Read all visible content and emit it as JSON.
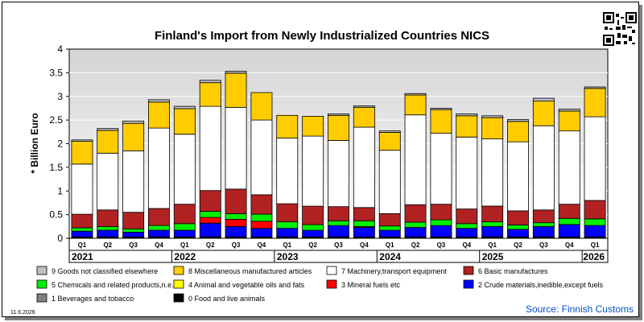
{
  "chart_data": {
    "type": "bar",
    "stacked": true,
    "title": "Finland's Import from Newly Industrialized Countries NICS",
    "ylabel": "* Billion Euro",
    "ylim": [
      0,
      4
    ],
    "yticks": [
      "0",
      "0.5",
      "1",
      "1.5",
      "2",
      "2.5",
      "3",
      "3.5",
      "4"
    ],
    "grid": true,
    "categories": [
      "Q1",
      "Q2",
      "Q3",
      "Q4",
      "Q1",
      "Q2",
      "Q3",
      "Q4",
      "Q1",
      "Q2",
      "Q3",
      "Q4",
      "Q1",
      "Q2",
      "Q3",
      "Q4",
      "Q1",
      "Q2",
      "Q3",
      "Q4",
      "Q1"
    ],
    "years": [
      {
        "label": "2021",
        "start": 0,
        "count": 4
      },
      {
        "label": "2022",
        "start": 4,
        "count": 4
      },
      {
        "label": "2023",
        "start": 8,
        "count": 4
      },
      {
        "label": "2024",
        "start": 12,
        "count": 4
      },
      {
        "label": "2025",
        "start": 16,
        "count": 4
      },
      {
        "label": "2026",
        "start": 20,
        "count": 1
      }
    ],
    "series": [
      {
        "name": "0 Food and live animals",
        "color": "#000000",
        "values": [
          0.02,
          0.02,
          0.02,
          0.02,
          0.02,
          0.02,
          0.02,
          0.02,
          0.02,
          0.02,
          0.02,
          0.02,
          0.02,
          0.02,
          0.02,
          0.02,
          0.02,
          0.02,
          0.02,
          0.02,
          0.02
        ]
      },
      {
        "name": "1 Beverages and tobacco",
        "color": "#808080",
        "values": [
          0.01,
          0.01,
          0.01,
          0.01,
          0.01,
          0.01,
          0.01,
          0.01,
          0.01,
          0.01,
          0.01,
          0.01,
          0.01,
          0.01,
          0.01,
          0.01,
          0.01,
          0.01,
          0.01,
          0.01,
          0.01
        ]
      },
      {
        "name": "2 Crude materials,inedible,except fuels",
        "color": "#0000ff",
        "values": [
          0.12,
          0.14,
          0.1,
          0.14,
          0.14,
          0.29,
          0.22,
          0.18,
          0.18,
          0.14,
          0.24,
          0.2,
          0.14,
          0.2,
          0.24,
          0.18,
          0.22,
          0.16,
          0.22,
          0.26,
          0.24
        ]
      },
      {
        "name": "3 Mineral fuels etc",
        "color": "#ff0000",
        "values": [
          0.0,
          0.0,
          0.0,
          0.0,
          0.0,
          0.12,
          0.15,
          0.15,
          0.0,
          0.0,
          0.0,
          0.02,
          0.0,
          0.0,
          0.0,
          0.0,
          0.0,
          0.0,
          0.0,
          0.0,
          0.0
        ]
      },
      {
        "name": "4 Animal and vegetable oils and fats",
        "color": "#ffff00",
        "values": [
          0.0,
          0.0,
          0.0,
          0.0,
          0.0,
          0.0,
          0.0,
          0.0,
          0.0,
          0.0,
          0.0,
          0.0,
          0.0,
          0.0,
          0.0,
          0.0,
          0.0,
          0.0,
          0.0,
          0.0,
          0.0
        ]
      },
      {
        "name": "5 Chemicals and related products,n.e.s.",
        "color": "#00ee00",
        "values": [
          0.07,
          0.08,
          0.07,
          0.1,
          0.14,
          0.13,
          0.12,
          0.15,
          0.14,
          0.12,
          0.1,
          0.12,
          0.09,
          0.11,
          0.12,
          0.1,
          0.1,
          0.09,
          0.08,
          0.13,
          0.14
        ]
      },
      {
        "name": "6 Basic manufactures",
        "color": "#b22222",
        "values": [
          0.29,
          0.35,
          0.35,
          0.36,
          0.41,
          0.44,
          0.52,
          0.41,
          0.38,
          0.39,
          0.3,
          0.28,
          0.26,
          0.37,
          0.33,
          0.31,
          0.33,
          0.3,
          0.27,
          0.3,
          0.39
        ]
      },
      {
        "name": "7 Machinery,transport equipment",
        "color": "#ffffff",
        "values": [
          1.06,
          1.2,
          1.3,
          1.7,
          1.48,
          1.78,
          1.73,
          1.58,
          1.39,
          1.48,
          1.4,
          1.7,
          1.34,
          1.9,
          1.5,
          1.52,
          1.42,
          1.46,
          1.78,
          1.55,
          1.77
        ]
      },
      {
        "name": "8 Miscellaneous manufactured articles",
        "color": "#ffcc00",
        "values": [
          0.48,
          0.48,
          0.58,
          0.55,
          0.54,
          0.5,
          0.72,
          0.58,
          0.48,
          0.42,
          0.53,
          0.42,
          0.38,
          0.42,
          0.5,
          0.45,
          0.45,
          0.43,
          0.52,
          0.42,
          0.6
        ]
      },
      {
        "name": "9 Goods not classified elsewhere",
        "color": "#c0c0c0",
        "values": [
          0.03,
          0.04,
          0.05,
          0.05,
          0.05,
          0.05,
          0.04,
          0.0,
          0.0,
          0.0,
          0.03,
          0.03,
          0.03,
          0.03,
          0.03,
          0.04,
          0.04,
          0.04,
          0.06,
          0.04,
          0.03
        ]
      }
    ]
  },
  "legend_order": [
    9,
    8,
    7,
    6,
    5,
    4,
    3,
    2,
    1,
    0
  ],
  "date_stamp": "11.6.2026",
  "source": "Source: Finnish Customs"
}
